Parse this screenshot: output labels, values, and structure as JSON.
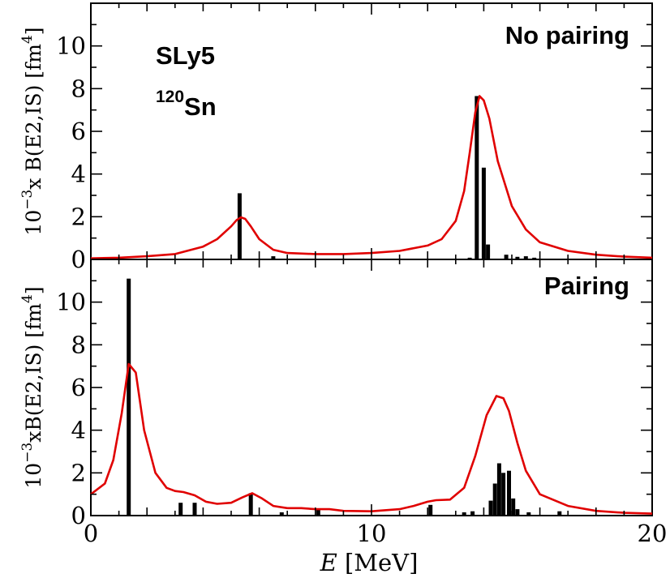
{
  "chart_data": {
    "type": "bar",
    "panels": [
      {
        "annotation": "No pairing",
        "ylabel_prefix": "10",
        "ylabel_exp": "−3",
        "ylabel_body": "x B(E2,IS) [fm",
        "ylabel_unit_exp": "4",
        "ylabel_close": "]",
        "xlim": [
          0,
          20
        ],
        "ylim": [
          0,
          12
        ],
        "yticks": [
          0,
          2,
          4,
          6,
          8,
          10
        ],
        "ytick_labels": [
          "0",
          "2",
          "4",
          "6",
          "8",
          "10"
        ],
        "bars": [
          {
            "x": 5.3,
            "y": 3.1
          },
          {
            "x": 6.5,
            "y": 0.15
          },
          {
            "x": 13.5,
            "y": 0.08
          },
          {
            "x": 13.75,
            "y": 7.65
          },
          {
            "x": 14.0,
            "y": 4.3
          },
          {
            "x": 14.15,
            "y": 0.7
          },
          {
            "x": 14.8,
            "y": 0.22
          },
          {
            "x": 15.2,
            "y": 0.12
          },
          {
            "x": 15.5,
            "y": 0.15
          },
          {
            "x": 15.8,
            "y": 0.08
          }
        ],
        "curve": {
          "color": "#e00000",
          "x": [
            0,
            1,
            2,
            3,
            4,
            4.5,
            5,
            5.2,
            5.35,
            5.5,
            5.7,
            6,
            6.5,
            7,
            8,
            9,
            10,
            11,
            12,
            12.5,
            13,
            13.3,
            13.5,
            13.7,
            13.85,
            14,
            14.2,
            14.5,
            15,
            15.5,
            16,
            17,
            18,
            19,
            20
          ],
          "y": [
            0.05,
            0.08,
            0.15,
            0.25,
            0.6,
            0.95,
            1.55,
            1.85,
            1.97,
            1.9,
            1.55,
            0.95,
            0.45,
            0.3,
            0.25,
            0.25,
            0.3,
            0.4,
            0.65,
            0.95,
            1.8,
            3.2,
            5.0,
            6.9,
            7.65,
            7.45,
            6.6,
            4.6,
            2.5,
            1.4,
            0.8,
            0.4,
            0.22,
            0.13,
            0.08
          ]
        }
      },
      {
        "annotation": "Pairing",
        "ylabel_prefix": "10",
        "ylabel_exp": "−3",
        "ylabel_body": "xB(E2,IS) [fm",
        "ylabel_unit_exp": "4",
        "ylabel_close": "]",
        "xlim": [
          0,
          20
        ],
        "ylim": [
          0,
          12
        ],
        "yticks": [
          0,
          2,
          4,
          6,
          8,
          10
        ],
        "ytick_labels": [
          "0",
          "2",
          "4",
          "6",
          "8",
          "10"
        ],
        "bars": [
          {
            "x": 1.35,
            "y": 11.1
          },
          {
            "x": 3.2,
            "y": 0.6
          },
          {
            "x": 3.7,
            "y": 0.6
          },
          {
            "x": 5.7,
            "y": 1.05
          },
          {
            "x": 6.8,
            "y": 0.15
          },
          {
            "x": 8.1,
            "y": 0.3
          },
          {
            "x": 12.1,
            "y": 0.5
          },
          {
            "x": 13.3,
            "y": 0.15
          },
          {
            "x": 13.6,
            "y": 0.2
          },
          {
            "x": 14.25,
            "y": 0.7
          },
          {
            "x": 14.4,
            "y": 1.5
          },
          {
            "x": 14.55,
            "y": 2.45
          },
          {
            "x": 14.7,
            "y": 2.0
          },
          {
            "x": 14.9,
            "y": 2.1
          },
          {
            "x": 15.05,
            "y": 0.8
          },
          {
            "x": 15.2,
            "y": 0.3
          },
          {
            "x": 15.6,
            "y": 0.15
          },
          {
            "x": 16.7,
            "y": 0.2
          }
        ],
        "curve": {
          "color": "#e00000",
          "x": [
            0,
            0.5,
            0.8,
            1.1,
            1.35,
            1.6,
            1.9,
            2.3,
            2.7,
            3.0,
            3.3,
            3.7,
            4.1,
            4.5,
            5.0,
            5.4,
            5.75,
            6.1,
            6.5,
            7,
            7.5,
            8,
            8.5,
            9,
            10,
            11,
            11.5,
            12,
            12.3,
            12.8,
            13.3,
            13.7,
            14.1,
            14.45,
            14.7,
            14.9,
            15.2,
            15.5,
            16,
            17,
            18,
            19,
            20
          ],
          "y": [
            1.0,
            1.5,
            2.6,
            4.8,
            7.1,
            6.7,
            4.0,
            2.0,
            1.3,
            1.15,
            1.1,
            0.95,
            0.65,
            0.55,
            0.6,
            0.85,
            1.05,
            0.8,
            0.45,
            0.35,
            0.35,
            0.3,
            0.3,
            0.22,
            0.2,
            0.3,
            0.45,
            0.65,
            0.72,
            0.75,
            1.3,
            2.8,
            4.7,
            5.6,
            5.5,
            4.9,
            3.4,
            2.1,
            1.0,
            0.45,
            0.22,
            0.13,
            0.09
          ]
        }
      }
    ],
    "xlabel_var": "E",
    "xlabel_unit": " [MeV]",
    "xticks": [
      0,
      10,
      20
    ],
    "xtick_labels": [
      "0",
      "10",
      "20"
    ],
    "text_labels": {
      "force": "SLy5",
      "nucleus_mass": "120",
      "nucleus_symbol": "Sn"
    }
  }
}
